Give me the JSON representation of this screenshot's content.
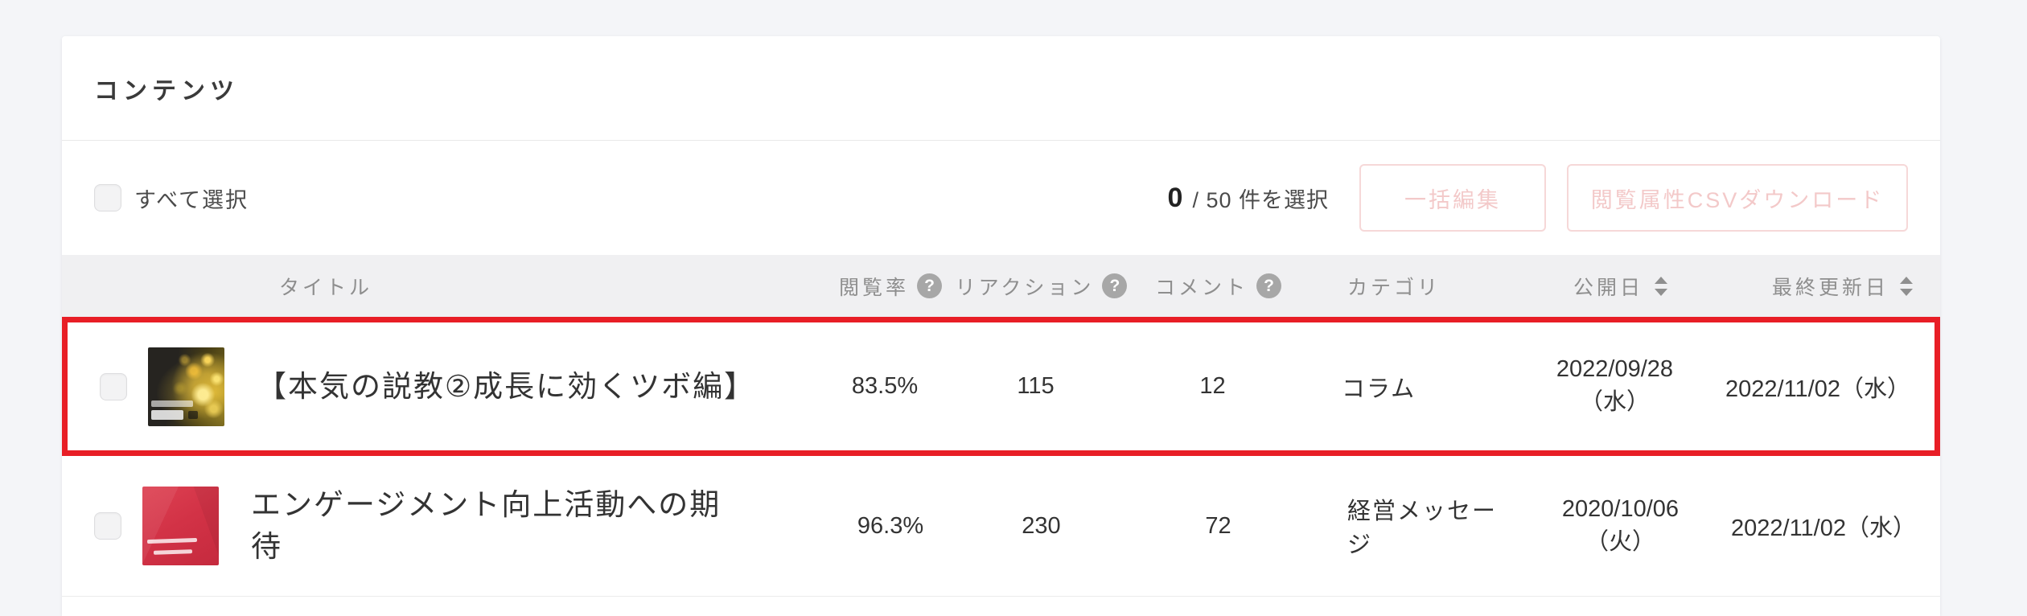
{
  "panel": {
    "title": "コンテンツ"
  },
  "toolbar": {
    "select_all_label": "すべて選択",
    "selected_count": "0",
    "selected_suffix": "/ 50 件を選択",
    "bulk_edit_button": "一括編集",
    "csv_download_button": "閲覧属性CSVダウンロード"
  },
  "table": {
    "headers": {
      "title": "タイトル",
      "view_rate": "閲覧率",
      "reactions": "リアクション",
      "comments": "コメント",
      "category": "カテゴリ",
      "published": "公開日",
      "updated": "最終更新日"
    },
    "help_glyph": "?",
    "rows": [
      {
        "title": "【本気の説教②成長に効くツボ編】",
        "view_rate": "83.5%",
        "reactions": "115",
        "comments": "12",
        "category": "コラム",
        "published": "2022/09/28（水）",
        "updated": "2022/11/02（水）",
        "thumbnail": "dark-gold-bokeh-thumbnail",
        "highlighted": true
      },
      {
        "title": "エンゲージメント向上活動への期待",
        "view_rate": "96.3%",
        "reactions": "230",
        "comments": "72",
        "category": "経営メッセージ",
        "published": "2020/10/06（火）",
        "updated": "2022/11/02（水）",
        "thumbnail": "red-message-thumbnail",
        "highlighted": false
      }
    ]
  },
  "colors": {
    "highlight_border": "#e81e26",
    "disabled_button_text": "#f3c9c9",
    "table_header_text": "#8e8e8e"
  }
}
